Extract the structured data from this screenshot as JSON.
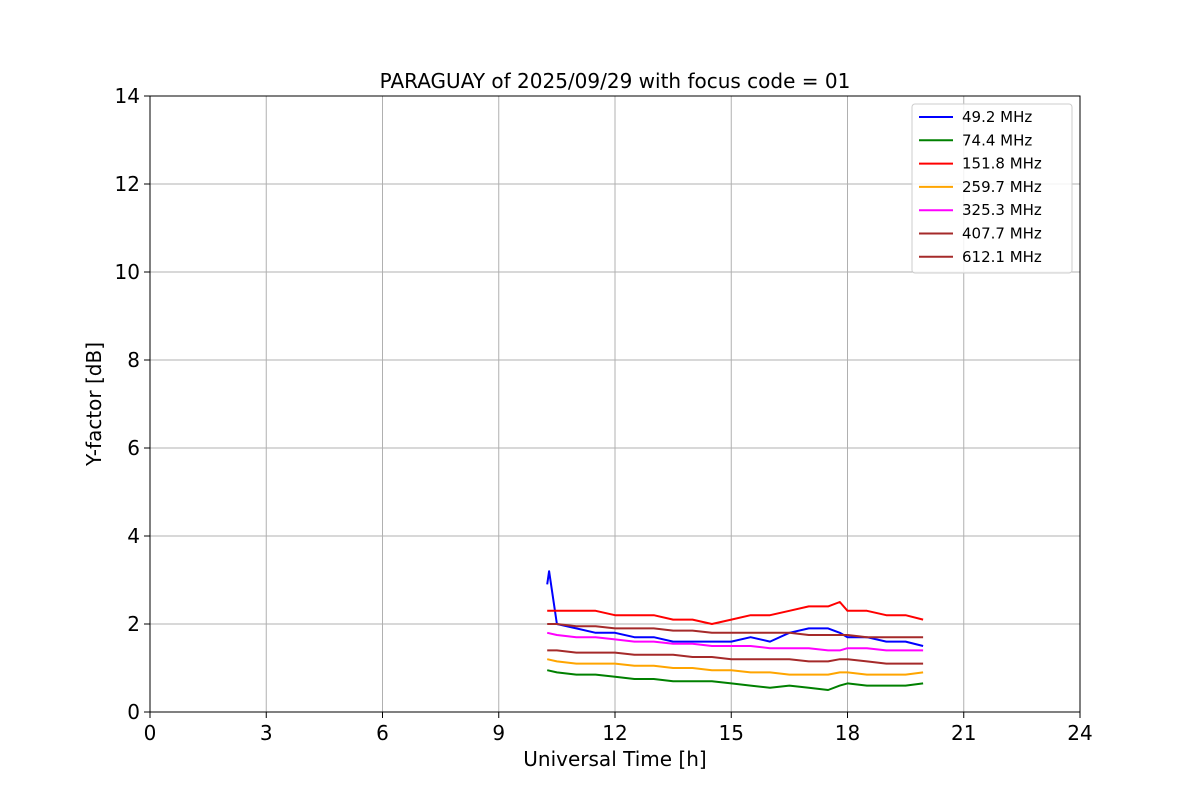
{
  "chart_data": {
    "type": "line",
    "title": "PARAGUAY of 2025/09/29 with focus code = 01",
    "xlabel": "Universal Time [h]",
    "ylabel": "Y-factor [dB]",
    "xlim": [
      0,
      24
    ],
    "ylim": [
      0,
      14
    ],
    "xticks": [
      0,
      3,
      6,
      9,
      12,
      15,
      18,
      21,
      24
    ],
    "yticks": [
      0,
      2,
      4,
      6,
      8,
      10,
      12,
      14
    ],
    "grid": true,
    "legend_position": "top-right",
    "series": [
      {
        "name": " 49.2 MHz",
        "color": "#0000ff",
        "x": [
          10.25,
          10.3,
          10.5,
          11.0,
          11.5,
          12.0,
          12.5,
          13.0,
          13.5,
          14.0,
          14.5,
          15.0,
          15.5,
          16.0,
          16.5,
          17.0,
          17.5,
          17.8,
          18.0,
          18.5,
          19.0,
          19.5,
          19.95
        ],
        "y": [
          2.9,
          3.2,
          2.0,
          1.9,
          1.8,
          1.8,
          1.7,
          1.7,
          1.6,
          1.6,
          1.6,
          1.6,
          1.7,
          1.6,
          1.8,
          1.9,
          1.9,
          1.8,
          1.7,
          1.7,
          1.6,
          1.6,
          1.5
        ]
      },
      {
        "name": " 74.4 MHz",
        "color": "#008000",
        "x": [
          10.25,
          10.5,
          11.0,
          11.5,
          12.0,
          12.5,
          13.0,
          13.5,
          14.0,
          14.5,
          15.0,
          15.5,
          16.0,
          16.5,
          17.0,
          17.5,
          17.8,
          18.0,
          18.5,
          19.0,
          19.5,
          19.95
        ],
        "y": [
          0.95,
          0.9,
          0.85,
          0.85,
          0.8,
          0.75,
          0.75,
          0.7,
          0.7,
          0.7,
          0.65,
          0.6,
          0.55,
          0.6,
          0.55,
          0.5,
          0.6,
          0.65,
          0.6,
          0.6,
          0.6,
          0.65
        ]
      },
      {
        "name": " 151.8 MHz",
        "color": "#ff0000",
        "x": [
          10.25,
          10.5,
          11.0,
          11.5,
          12.0,
          12.5,
          13.0,
          13.5,
          14.0,
          14.5,
          15.0,
          15.5,
          16.0,
          16.5,
          17.0,
          17.5,
          17.8,
          18.0,
          18.5,
          19.0,
          19.5,
          19.95
        ],
        "y": [
          2.3,
          2.3,
          2.3,
          2.3,
          2.2,
          2.2,
          2.2,
          2.1,
          2.1,
          2.0,
          2.1,
          2.2,
          2.2,
          2.3,
          2.4,
          2.4,
          2.5,
          2.3,
          2.3,
          2.2,
          2.2,
          2.1
        ]
      },
      {
        "name": " 259.7 MHz",
        "color": "#ffa500",
        "x": [
          10.25,
          10.5,
          11.0,
          11.5,
          12.0,
          12.5,
          13.0,
          13.5,
          14.0,
          14.5,
          15.0,
          15.5,
          16.0,
          16.5,
          17.0,
          17.5,
          17.8,
          18.0,
          18.5,
          19.0,
          19.5,
          19.95
        ],
        "y": [
          1.2,
          1.15,
          1.1,
          1.1,
          1.1,
          1.05,
          1.05,
          1.0,
          1.0,
          0.95,
          0.95,
          0.9,
          0.9,
          0.85,
          0.85,
          0.85,
          0.9,
          0.9,
          0.85,
          0.85,
          0.85,
          0.9
        ]
      },
      {
        "name": " 325.3 MHz",
        "color": "#ff00ff",
        "x": [
          10.25,
          10.5,
          11.0,
          11.5,
          12.0,
          12.5,
          13.0,
          13.5,
          14.0,
          14.5,
          15.0,
          15.5,
          16.0,
          16.5,
          17.0,
          17.5,
          17.8,
          18.0,
          18.5,
          19.0,
          19.5,
          19.95
        ],
        "y": [
          1.8,
          1.75,
          1.7,
          1.7,
          1.65,
          1.6,
          1.6,
          1.55,
          1.55,
          1.5,
          1.5,
          1.5,
          1.45,
          1.45,
          1.45,
          1.4,
          1.4,
          1.45,
          1.45,
          1.4,
          1.4,
          1.4
        ]
      },
      {
        "name": " 407.7 MHz",
        "color": "#a52a2a",
        "x": [
          10.25,
          10.5,
          11.0,
          11.5,
          12.0,
          12.5,
          13.0,
          13.5,
          14.0,
          14.5,
          15.0,
          15.5,
          16.0,
          16.5,
          17.0,
          17.5,
          17.8,
          18.0,
          18.5,
          19.0,
          19.5,
          19.95
        ],
        "y": [
          2.0,
          2.0,
          1.95,
          1.95,
          1.9,
          1.9,
          1.9,
          1.85,
          1.85,
          1.8,
          1.8,
          1.8,
          1.8,
          1.8,
          1.75,
          1.75,
          1.75,
          1.75,
          1.7,
          1.7,
          1.7,
          1.7
        ]
      },
      {
        "name": " 612.1 MHz",
        "color": "#a52a2a",
        "x": [
          10.25,
          10.5,
          11.0,
          11.5,
          12.0,
          12.5,
          13.0,
          13.5,
          14.0,
          14.5,
          15.0,
          15.5,
          16.0,
          16.5,
          17.0,
          17.5,
          17.8,
          18.0,
          18.5,
          19.0,
          19.5,
          19.95
        ],
        "y": [
          1.4,
          1.4,
          1.35,
          1.35,
          1.35,
          1.3,
          1.3,
          1.3,
          1.25,
          1.25,
          1.2,
          1.2,
          1.2,
          1.2,
          1.15,
          1.15,
          1.2,
          1.2,
          1.15,
          1.1,
          1.1,
          1.1
        ]
      }
    ]
  }
}
